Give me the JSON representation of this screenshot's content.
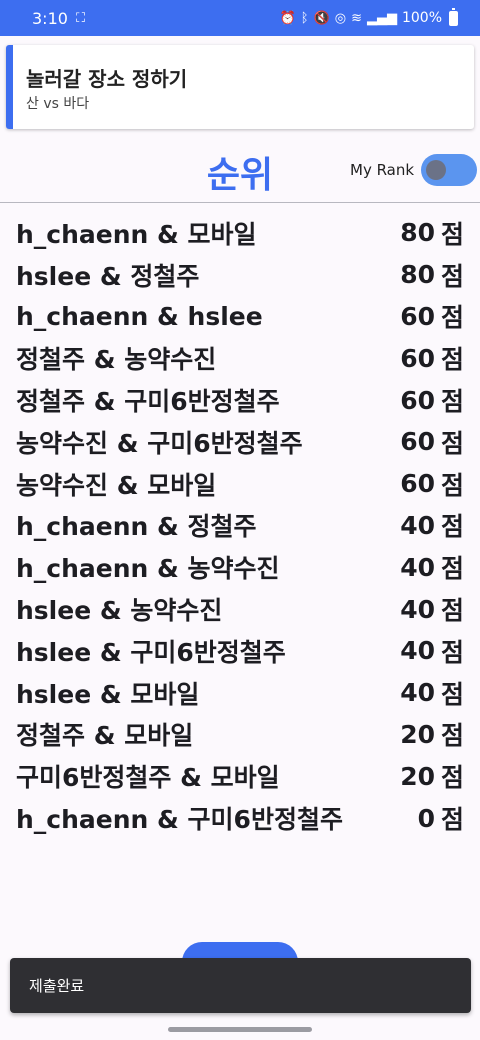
{
  "status_bar": {
    "time": "3:10",
    "battery": "100%",
    "icons": [
      "screenshot-icon",
      "alarm-icon",
      "bluetooth-icon",
      "mute-icon",
      "hotspot-icon",
      "wifi-icon",
      "signal-icon",
      "battery-icon"
    ]
  },
  "header": {
    "title": "놀러갈 장소 정하기",
    "subtitle": "산 vs 바다"
  },
  "ranking": {
    "title": "순위",
    "toggle_label": "My Rank",
    "toggle_on": true,
    "score_unit": "점",
    "rows": [
      {
        "pair": "h_chaenn & 모바일",
        "score": "80"
      },
      {
        "pair": "hslee & 정철주",
        "score": "80"
      },
      {
        "pair": "h_chaenn & hslee",
        "score": "60"
      },
      {
        "pair": "정철주 & 농약수진",
        "score": "60"
      },
      {
        "pair": "정철주 & 구미6반정철주",
        "score": "60"
      },
      {
        "pair": "농약수진 & 구미6반정철주",
        "score": "60"
      },
      {
        "pair": "농약수진 & 모바일",
        "score": "60"
      },
      {
        "pair": "h_chaenn & 정철주",
        "score": "40"
      },
      {
        "pair": "h_chaenn & 농약수진",
        "score": "40"
      },
      {
        "pair": "hslee & 농약수진",
        "score": "40"
      },
      {
        "pair": "hslee & 구미6반정철주",
        "score": "40"
      },
      {
        "pair": "hslee & 모바일",
        "score": "40"
      },
      {
        "pair": "정철주 & 모바일",
        "score": "20"
      },
      {
        "pair": "구미6반정철주 & 모바일",
        "score": "20"
      },
      {
        "pair": "h_chaenn & 구미6반정철주",
        "score": "0"
      }
    ]
  },
  "snackbar": {
    "message": "제출완료"
  },
  "colors": {
    "accent": "#3d6ef0",
    "toggle_track": "#5b95ef",
    "snackbar_bg": "#2f2f33"
  }
}
